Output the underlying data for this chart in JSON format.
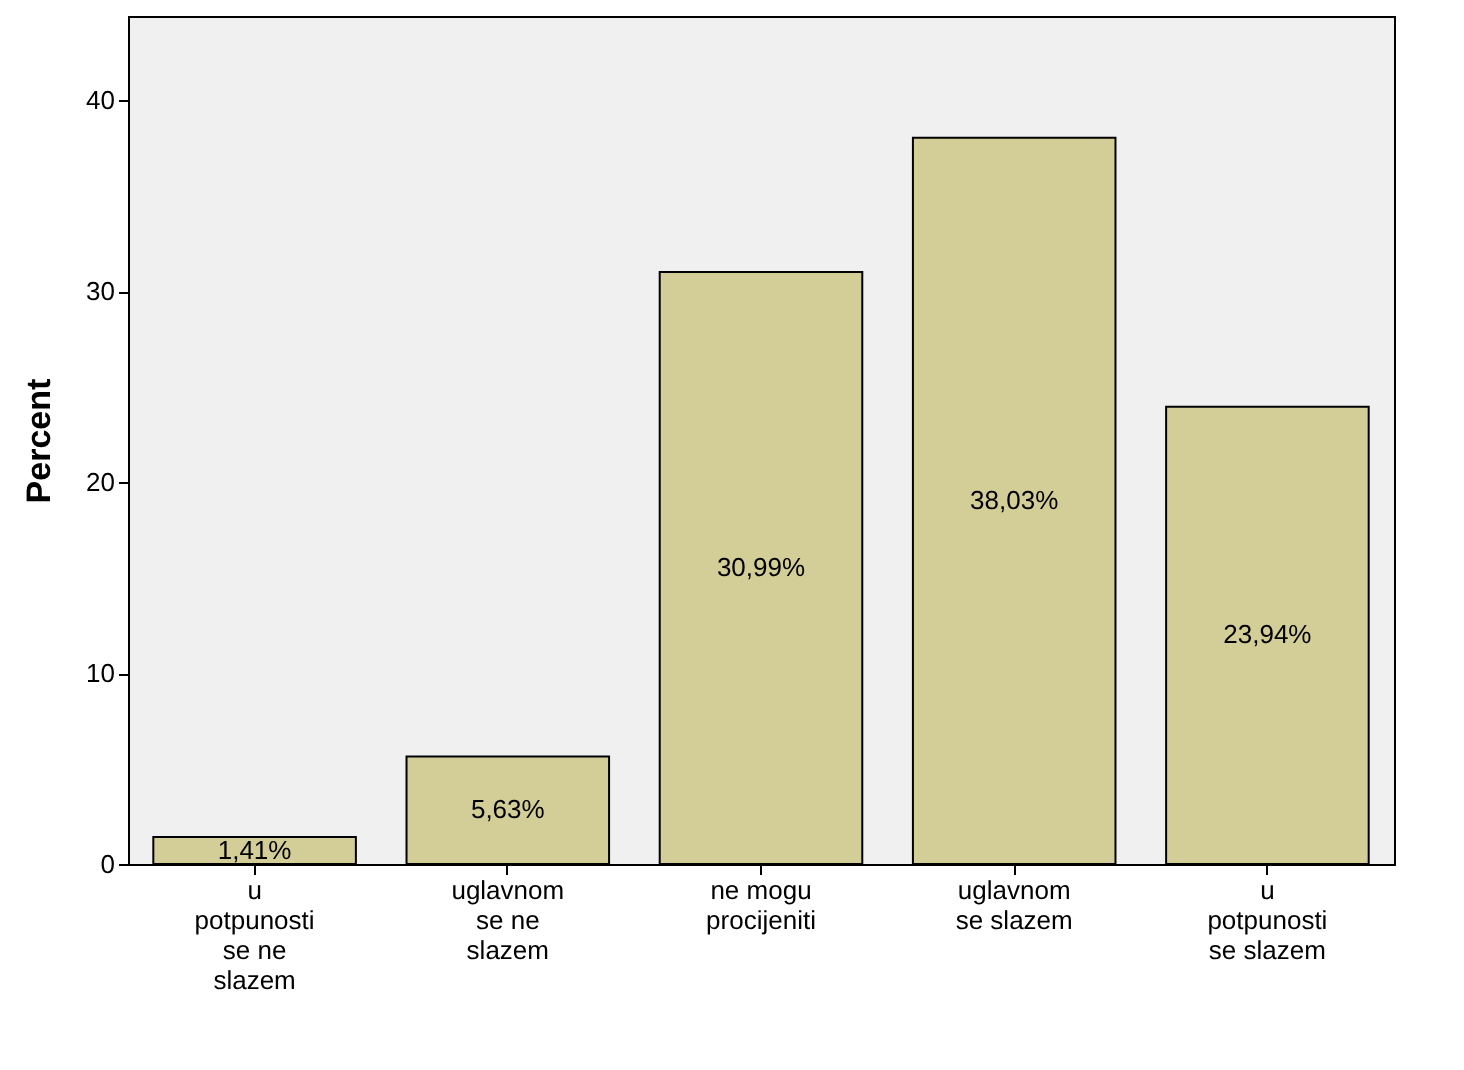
{
  "chart_data": {
    "type": "bar",
    "ylabel": "Percent",
    "categories": [
      "u potpunosti se ne slazem",
      "uglavnom se ne slazem",
      "ne mogu procijeniti",
      "uglavnom se slazem",
      "u potpunosti se slazem"
    ],
    "values": [
      1.41,
      5.63,
      30.99,
      38.03,
      23.94
    ],
    "value_labels": [
      "1,41%",
      "5,63%",
      "30,99%",
      "38,03%",
      "23,94%"
    ],
    "color": "#d3ce97",
    "ylim": [
      0,
      44.4
    ],
    "yticks": [
      0,
      10,
      20,
      30,
      40
    ],
    "grid": false
  }
}
